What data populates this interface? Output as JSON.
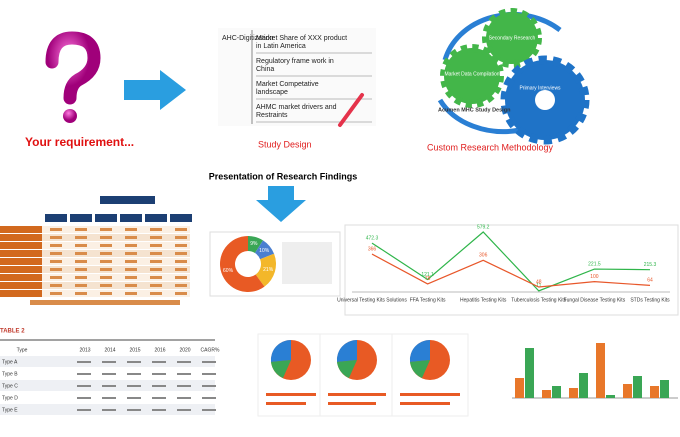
{
  "requirement": {
    "label": "Your requirement..."
  },
  "study_design": {
    "side_label": "AHC-Digitization",
    "items": [
      [
        "Market Share of XXX product",
        "in Latin America"
      ],
      [
        "Regulatory frame work in",
        "China"
      ],
      [
        "Market Competative",
        "landscape"
      ],
      [
        "AHMC market drivers and",
        "Restraints"
      ]
    ],
    "caption": "Study Design"
  },
  "methodology": {
    "gears": [
      "Secondary Research",
      "Market Data Compilation",
      "Primary Interviews"
    ],
    "study_label": "Acumen MHC Study Design",
    "caption": "Custom Research Methodology"
  },
  "findings": {
    "title": "Presentation of Research Findings"
  },
  "donut": {
    "values": [
      9,
      10,
      21,
      60
    ],
    "value_labels": [
      "9%",
      "10%",
      "21%",
      "60%"
    ],
    "colors": [
      "#3aa655",
      "#4a7fd0",
      "#f3b72a",
      "#e85a24"
    ]
  },
  "line_chart": {
    "type": "line",
    "categories": [
      "Universal Testing Kits Solutions",
      "FFA Testing Kits",
      "Hepatitis Testing Kits",
      "Tuberculosis Testing Kits",
      "Fungal Disease Testing Kits",
      "STDs Testing Kits"
    ],
    "series": [
      {
        "color": "#2fb54a",
        "values": [
          472.3,
          121.1,
          579.2,
          11,
          221.5,
          215.3
        ]
      },
      {
        "color": "#e8572a",
        "values": [
          366,
          78,
          306,
          48,
          100,
          64
        ]
      }
    ]
  },
  "table": {
    "title": "TABLE 2",
    "header": [
      "Type",
      "2013",
      "2014",
      "2015",
      "2016",
      "2020",
      "CAGR%"
    ],
    "rows": [
      "Type A",
      "Type B",
      "Type C",
      "Type D",
      "Type E"
    ]
  }
}
